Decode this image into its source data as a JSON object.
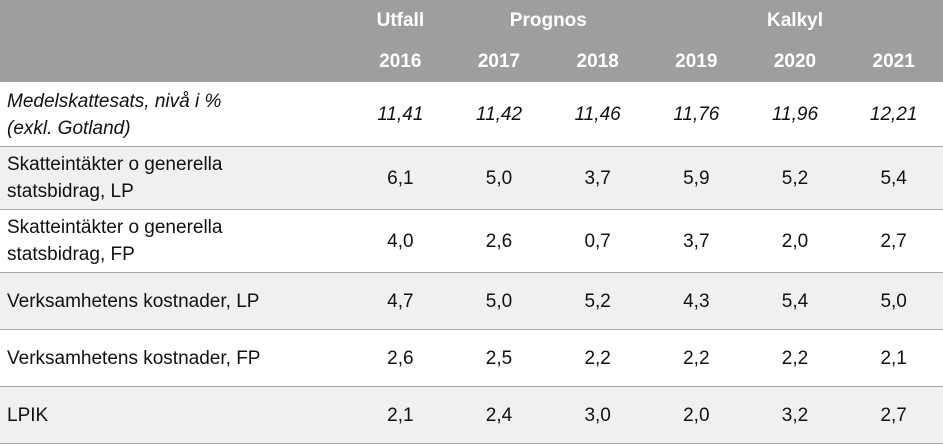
{
  "header": {
    "groups": [
      "Utfall",
      "Prognos",
      "Kalkyl"
    ],
    "years": [
      "2016",
      "2017",
      "2018",
      "2019",
      "2020",
      "2021"
    ]
  },
  "rows": [
    {
      "label_lines": [
        "Medelskattesats, nivå i %",
        "(exkl. Gotland)"
      ],
      "values": [
        "11,41",
        "11,42",
        "11,46",
        "11,76",
        "11,96",
        "12,21"
      ]
    },
    {
      "label_lines": [
        "Skatteintäkter o generella",
        "statsbidrag, LP"
      ],
      "values": [
        "6,1",
        "5,0",
        "3,7",
        "5,9",
        "5,2",
        "5,4"
      ]
    },
    {
      "label_lines": [
        "Skatteintäkter o generella",
        "statsbidrag, FP"
      ],
      "values": [
        "4,0",
        "2,6",
        "0,7",
        "3,7",
        "2,0",
        "2,7"
      ]
    },
    {
      "label_lines": [
        "Verksamhetens kostnader, LP"
      ],
      "values": [
        "4,7",
        "5,0",
        "5,2",
        "4,3",
        "5,4",
        "5,0"
      ]
    },
    {
      "label_lines": [
        "Verksamhetens kostnader, FP"
      ],
      "values": [
        "2,6",
        "2,5",
        "2,2",
        "2,2",
        "2,2",
        "2,1"
      ]
    },
    {
      "label_lines": [
        "LPIK"
      ],
      "values": [
        "2,1",
        "2,4",
        "3,0",
        "2,0",
        "3,2",
        "2,7"
      ]
    }
  ],
  "colors": {
    "header_bg": "#9e9e9e",
    "header_text": "#ffffff",
    "alt_row_bg": "#f0f0f0"
  }
}
